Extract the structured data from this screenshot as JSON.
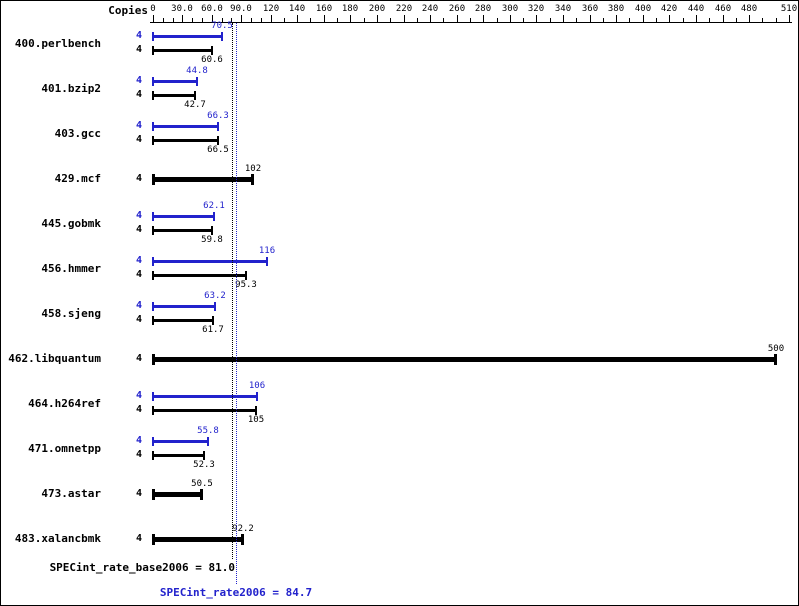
{
  "header": {
    "copies_label": "Copies"
  },
  "colors": {
    "peak": "#2222cc",
    "base": "#000000",
    "background": "#ffffff"
  },
  "chart_data": {
    "type": "bar",
    "orientation": "horizontal",
    "title": "",
    "xlabel": "",
    "ylabel": "Copies",
    "xlim": [
      0,
      510
    ],
    "axis": {
      "ticks": [
        0,
        30,
        60,
        90,
        120,
        140,
        160,
        180,
        200,
        220,
        240,
        260,
        280,
        300,
        320,
        340,
        360,
        380,
        400,
        420,
        440,
        460,
        480,
        510
      ],
      "tick_labels": [
        "0",
        "30.0",
        "60.0",
        "90.0",
        "120",
        "140",
        "160",
        "180",
        "200",
        "220",
        "240",
        "260",
        "280",
        "300",
        "320",
        "340",
        "360",
        "380",
        "400",
        "420",
        "440",
        "460",
        "480",
        "510"
      ],
      "minor_step": 10,
      "max": 510
    },
    "benchmarks": [
      {
        "name": "400.perlbench",
        "bars": [
          {
            "type": "peak",
            "copies": 4,
            "value": 70.5
          },
          {
            "type": "base",
            "copies": 4,
            "value": 60.6
          }
        ]
      },
      {
        "name": "401.bzip2",
        "bars": [
          {
            "type": "peak",
            "copies": 4,
            "value": 44.8
          },
          {
            "type": "base",
            "copies": 4,
            "value": 42.7
          }
        ]
      },
      {
        "name": "403.gcc",
        "bars": [
          {
            "type": "peak",
            "copies": 4,
            "value": 66.3
          },
          {
            "type": "base",
            "copies": 4,
            "value": 66.5
          }
        ]
      },
      {
        "name": "429.mcf",
        "bars": [
          {
            "type": "single",
            "copies": 4,
            "value": 102
          }
        ]
      },
      {
        "name": "445.gobmk",
        "bars": [
          {
            "type": "peak",
            "copies": 4,
            "value": 62.1
          },
          {
            "type": "base",
            "copies": 4,
            "value": 59.8
          }
        ]
      },
      {
        "name": "456.hmmer",
        "bars": [
          {
            "type": "peak",
            "copies": 4,
            "value": 116
          },
          {
            "type": "base",
            "copies": 4,
            "value": 95.3
          }
        ]
      },
      {
        "name": "458.sjeng",
        "bars": [
          {
            "type": "peak",
            "copies": 4,
            "value": 63.2
          },
          {
            "type": "base",
            "copies": 4,
            "value": 61.7
          }
        ]
      },
      {
        "name": "462.libquantum",
        "bars": [
          {
            "type": "single",
            "copies": 4,
            "value": 500
          }
        ]
      },
      {
        "name": "464.h264ref",
        "bars": [
          {
            "type": "peak",
            "copies": 4,
            "value": 106
          },
          {
            "type": "base",
            "copies": 4,
            "value": 105
          }
        ]
      },
      {
        "name": "471.omnetpp",
        "bars": [
          {
            "type": "peak",
            "copies": 4,
            "value": 55.8
          },
          {
            "type": "base",
            "copies": 4,
            "value": 52.3
          }
        ]
      },
      {
        "name": "473.astar",
        "bars": [
          {
            "type": "single",
            "copies": 4,
            "value": 50.5
          }
        ]
      },
      {
        "name": "483.xalancbmk",
        "bars": [
          {
            "type": "single",
            "copies": 4,
            "value": 92.2
          }
        ]
      }
    ],
    "means": {
      "base": {
        "value": 81.0,
        "label": "SPECint_rate_base2006 = 81.0"
      },
      "peak": {
        "value": 84.7,
        "label": "SPECint_rate2006 = 84.7"
      }
    }
  }
}
